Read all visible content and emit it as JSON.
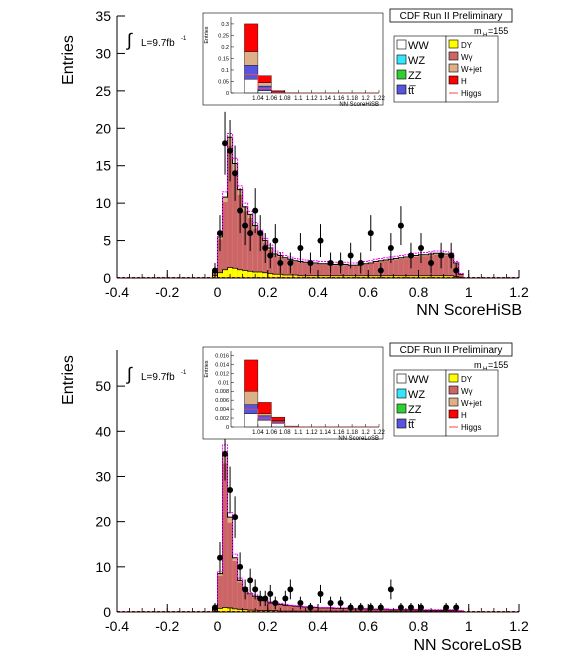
{
  "panels": [
    {
      "run_label": "CDF Run II Preliminary",
      "mass_label": "m",
      "mass_sub": "H",
      "mass_value": "=155",
      "lumi_text": "L=9.7fb",
      "lumi_sup": "-1",
      "legend_left": [
        {
          "label": "WW",
          "color": "#ffffff"
        },
        {
          "label": "WZ",
          "color": "#33e5ff"
        },
        {
          "label": "ZZ",
          "color": "#33cc33"
        },
        {
          "label": "tt̅",
          "color": "#5555dd"
        }
      ],
      "legend_right": [
        {
          "label": "DY",
          "color": "#ffff00"
        },
        {
          "label": "Wγ",
          "color": "#cc6666"
        },
        {
          "label": "W+jet",
          "color": "#dcb088"
        },
        {
          "label": "H",
          "color": "#ff0000"
        },
        {
          "label": "Higgs",
          "color": "#ff4444",
          "line": true
        }
      ]
    },
    {
      "run_label": "CDF Run II Preliminary",
      "mass_label": "m",
      "mass_sub": "H",
      "mass_value": "=155",
      "lumi_text": "L=9.7fb",
      "lumi_sup": "-1",
      "legend_left": [
        {
          "label": "WW",
          "color": "#ffffff"
        },
        {
          "label": "WZ",
          "color": "#33e5ff"
        },
        {
          "label": "ZZ",
          "color": "#33cc33"
        },
        {
          "label": "tt̅",
          "color": "#5555dd"
        }
      ],
      "legend_right": [
        {
          "label": "DY",
          "color": "#ffff00"
        },
        {
          "label": "Wγ",
          "color": "#cc6666"
        },
        {
          "label": "W+jet",
          "color": "#dcb088"
        },
        {
          "label": "H",
          "color": "#ff0000"
        },
        {
          "label": "Higgs",
          "color": "#ff4444",
          "line": true
        }
      ]
    }
  ],
  "chart_data": [
    {
      "type": "bar",
      "xlabel": "NN ScoreHiSB",
      "ylabel": "Entries",
      "xlim": [
        -0.4,
        1.2
      ],
      "ylim": [
        0,
        35
      ],
      "xticks": [
        "-0.4",
        "-0.2",
        "0",
        "0.2",
        "0.4",
        "0.6",
        "0.8",
        "1",
        "1.2"
      ],
      "yticks": [
        "0",
        "5",
        "10",
        "15",
        "20",
        "25",
        "30",
        "35"
      ],
      "bin_edges": [
        -0.02,
        0.0,
        0.02,
        0.04,
        0.06,
        0.08,
        0.1,
        0.12,
        0.14,
        0.16,
        0.18,
        0.2,
        0.22,
        0.24,
        0.26,
        0.28,
        0.3,
        0.32,
        0.34,
        0.36,
        0.38,
        0.4,
        0.42,
        0.44,
        0.46,
        0.48,
        0.5,
        0.52,
        0.54,
        0.56,
        0.58,
        0.6,
        0.62,
        0.64,
        0.66,
        0.68,
        0.7,
        0.72,
        0.74,
        0.76,
        0.78,
        0.8,
        0.82,
        0.84,
        0.86,
        0.88,
        0.9,
        0.92,
        0.94,
        0.96,
        0.98,
        1.0
      ],
      "stack_total": [
        0.8,
        5.5,
        10.8,
        18.8,
        15.3,
        11.8,
        9.5,
        8.5,
        7.0,
        6.0,
        5.0,
        4.0,
        3.2,
        3.0,
        2.7,
        2.5,
        2.3,
        2.2,
        2.1,
        2.0,
        2.0,
        1.9,
        1.9,
        1.8,
        1.8,
        1.8,
        1.8,
        1.7,
        1.7,
        1.8,
        1.9,
        2.0,
        2.2,
        2.3,
        2.4,
        2.5,
        2.6,
        2.7,
        2.8,
        2.9,
        3.0,
        3.1,
        3.1,
        3.2,
        3.3,
        3.3,
        3.2,
        3.0,
        2.0,
        0.5
      ],
      "dy": [
        0.3,
        0.7,
        1.1,
        1.4,
        1.3,
        1.1,
        1.0,
        0.9,
        0.8,
        0.8,
        0.7,
        0.6,
        0.5,
        0.5,
        0.4,
        0.4,
        0.4,
        0.3,
        0.3,
        0.3,
        0.3,
        0.3,
        0.3,
        0.3,
        0.3,
        0.3,
        0.3,
        0.3,
        0.3,
        0.3,
        0.3,
        0.3,
        0.3,
        0.3,
        0.3,
        0.3,
        0.3,
        0.3,
        0.3,
        0.3,
        0.3,
        0.3,
        0.3,
        0.3,
        0.3,
        0.3,
        0.3,
        0.3,
        0.2,
        0.1
      ],
      "higgs": [
        0.8,
        5.8,
        11.5,
        19.3,
        16.0,
        12.3,
        10.0,
        8.9,
        7.4,
        6.4,
        5.3,
        4.4,
        3.6,
        3.4,
        3.0,
        2.8,
        2.6,
        2.5,
        2.4,
        2.3,
        2.3,
        2.2,
        2.2,
        2.1,
        2.1,
        2.1,
        2.1,
        2.0,
        2.0,
        2.1,
        2.2,
        2.3,
        2.5,
        2.6,
        2.7,
        2.8,
        2.9,
        3.0,
        3.1,
        3.2,
        3.3,
        3.4,
        3.4,
        3.5,
        3.6,
        3.6,
        3.5,
        3.3,
        2.2,
        0.6
      ],
      "data_points": [
        {
          "x": -0.01,
          "y": 1.0,
          "err": 1.0
        },
        {
          "x": 0.01,
          "y": 6.0,
          "err": 2.4
        },
        {
          "x": 0.03,
          "y": 18.0,
          "err": 4.2
        },
        {
          "x": 0.05,
          "y": 17.0,
          "err": 4.1
        },
        {
          "x": 0.07,
          "y": 14.0,
          "err": 3.7
        },
        {
          "x": 0.09,
          "y": 9.0,
          "err": 3.0
        },
        {
          "x": 0.11,
          "y": 7.0,
          "err": 2.6
        },
        {
          "x": 0.13,
          "y": 6.0,
          "err": 2.4
        },
        {
          "x": 0.15,
          "y": 9.0,
          "err": 3.0
        },
        {
          "x": 0.17,
          "y": 6.0,
          "err": 2.4
        },
        {
          "x": 0.19,
          "y": 4.0,
          "err": 2.0
        },
        {
          "x": 0.21,
          "y": 3.0,
          "err": 1.7
        },
        {
          "x": 0.23,
          "y": 5.0,
          "err": 2.2
        },
        {
          "x": 0.25,
          "y": 2.0,
          "err": 1.4
        },
        {
          "x": 0.29,
          "y": 2.0,
          "err": 1.4
        },
        {
          "x": 0.33,
          "y": 4.0,
          "err": 2.0
        },
        {
          "x": 0.37,
          "y": 2.0,
          "err": 1.4
        },
        {
          "x": 0.41,
          "y": 5.0,
          "err": 2.2
        },
        {
          "x": 0.45,
          "y": 2.0,
          "err": 1.4
        },
        {
          "x": 0.49,
          "y": 2.0,
          "err": 1.4
        },
        {
          "x": 0.53,
          "y": 3.0,
          "err": 1.7
        },
        {
          "x": 0.57,
          "y": 2.0,
          "err": 1.4
        },
        {
          "x": 0.61,
          "y": 6.0,
          "err": 2.4
        },
        {
          "x": 0.65,
          "y": 1.0,
          "err": 1.0
        },
        {
          "x": 0.69,
          "y": 4.0,
          "err": 2.0
        },
        {
          "x": 0.73,
          "y": 7.0,
          "err": 2.6
        },
        {
          "x": 0.77,
          "y": 3.0,
          "err": 1.7
        },
        {
          "x": 0.81,
          "y": 4.0,
          "err": 2.0
        },
        {
          "x": 0.85,
          "y": 2.0,
          "err": 1.4
        },
        {
          "x": 0.89,
          "y": 3.0,
          "err": 1.7
        },
        {
          "x": 0.93,
          "y": 3.0,
          "err": 1.7
        },
        {
          "x": 0.95,
          "y": 1.0,
          "err": 1.0
        }
      ],
      "inset": {
        "xlabel": "NN ScoreHiSB",
        "ylabel": "Entries",
        "xlim": [
          1.0,
          1.22
        ],
        "ylim": [
          0,
          0.33
        ],
        "yticks": [
          "0",
          "0.05",
          "0.1",
          "0.15",
          "0.2",
          "0.25",
          "0.3"
        ],
        "xticks": [
          "1.04",
          "1.06",
          "1.08",
          "1.1",
          "1.12",
          "1.14",
          "1.16",
          "1.18",
          "1.2",
          "1.22"
        ],
        "bin_edges": [
          1.02,
          1.04,
          1.06,
          1.08,
          1.1,
          1.12,
          1.14,
          1.16,
          1.18,
          1.2,
          1.22
        ],
        "stack": [
          {
            "name": "WW",
            "color": "#ffffff",
            "values": [
              0.06,
              0.01,
              0.0,
              0,
              0,
              0,
              0,
              0,
              0,
              0
            ]
          },
          {
            "name": "tt",
            "color": "#5555dd",
            "values": [
              0.06,
              0.02,
              0.003,
              0,
              0,
              0,
              0,
              0,
              0,
              0
            ]
          },
          {
            "name": "W+jet",
            "color": "#dcb088",
            "values": [
              0.06,
              0.015,
              0.002,
              0,
              0,
              0,
              0,
              0,
              0,
              0
            ]
          },
          {
            "name": "H",
            "color": "#ff0000",
            "values": [
              0.12,
              0.03,
              0.005,
              0.001,
              0,
              0,
              0,
              0,
              0,
              0
            ]
          }
        ],
        "higgs_line": [
          0.08,
          0.02,
          0.003,
          0.0,
          0,
          0,
          0,
          0,
          0,
          0
        ]
      }
    },
    {
      "type": "bar",
      "xlabel": "NN ScoreLoSB",
      "ylabel": "Entries",
      "xlim": [
        -0.4,
        1.2
      ],
      "ylim": [
        0,
        58
      ],
      "xticks": [
        "-0.4",
        "-0.2",
        "0",
        "0.2",
        "0.4",
        "0.6",
        "0.8",
        "1",
        "1.2"
      ],
      "yticks": [
        "0",
        "10",
        "20",
        "30",
        "40",
        "50"
      ],
      "bin_edges": [
        -0.02,
        0.0,
        0.02,
        0.04,
        0.06,
        0.08,
        0.1,
        0.12,
        0.14,
        0.16,
        0.18,
        0.2,
        0.22,
        0.24,
        0.26,
        0.28,
        0.3,
        0.32,
        0.34,
        0.36,
        0.38,
        0.4,
        0.42,
        0.44,
        0.46,
        0.48,
        0.5,
        0.52,
        0.54,
        0.56,
        0.58,
        0.6,
        0.62,
        0.64,
        0.66,
        0.68,
        0.7,
        0.72,
        0.74,
        0.76,
        0.78,
        0.8,
        0.82,
        0.84,
        0.86,
        0.88,
        0.9,
        0.92,
        0.94,
        0.96,
        0.98,
        1.0
      ],
      "stack_total": [
        1.0,
        8.5,
        35.0,
        21.0,
        12.0,
        7.0,
        5.0,
        4.0,
        3.5,
        3.0,
        2.5,
        2.0,
        2.0,
        1.7,
        1.5,
        1.4,
        1.3,
        1.2,
        1.1,
        1.0,
        1.0,
        0.9,
        0.9,
        0.9,
        0.8,
        0.8,
        0.8,
        0.7,
        0.7,
        0.7,
        0.7,
        0.6,
        0.6,
        0.6,
        0.6,
        0.5,
        0.5,
        0.5,
        0.5,
        0.5,
        0.5,
        0.4,
        0.4,
        0.4,
        0.4,
        0.4,
        0.4,
        0.4,
        0.3,
        0.2
      ],
      "dy": [
        0.2,
        0.8,
        1.0,
        0.9,
        0.7,
        0.6,
        0.5,
        0.4,
        0.4,
        0.3,
        0.3,
        0.3,
        0.3,
        0.2,
        0.2,
        0.2,
        0.2,
        0.2,
        0.2,
        0.2,
        0.2,
        0.2,
        0.2,
        0.2,
        0.2,
        0.2,
        0.2,
        0.2,
        0.2,
        0.2,
        0.2,
        0.2,
        0.2,
        0.2,
        0.2,
        0.2,
        0.2,
        0.2,
        0.2,
        0.2,
        0.2,
        0.2,
        0.2,
        0.2,
        0.2,
        0.2,
        0.2,
        0.2,
        0.1,
        0.1
      ],
      "higgs": [
        1.0,
        9.0,
        37.0,
        22.0,
        12.8,
        7.5,
        5.4,
        4.3,
        3.8,
        3.2,
        2.7,
        2.2,
        2.2,
        1.9,
        1.7,
        1.5,
        1.4,
        1.3,
        1.2,
        1.1,
        1.1,
        1.0,
        1.0,
        1.0,
        0.9,
        0.9,
        0.9,
        0.8,
        0.8,
        0.8,
        0.8,
        0.7,
        0.7,
        0.7,
        0.7,
        0.6,
        0.6,
        0.6,
        0.6,
        0.6,
        0.6,
        0.5,
        0.5,
        0.5,
        0.5,
        0.5,
        0.5,
        0.5,
        0.4,
        0.3
      ],
      "data_points": [
        {
          "x": -0.01,
          "y": 1.0,
          "err": 1.0
        },
        {
          "x": 0.01,
          "y": 12.0,
          "err": 3.5
        },
        {
          "x": 0.03,
          "y": 35.0,
          "err": 5.9
        },
        {
          "x": 0.05,
          "y": 27.0,
          "err": 5.2
        },
        {
          "x": 0.07,
          "y": 21.0,
          "err": 4.6
        },
        {
          "x": 0.09,
          "y": 10.0,
          "err": 3.2
        },
        {
          "x": 0.11,
          "y": 5.0,
          "err": 2.2
        },
        {
          "x": 0.13,
          "y": 7.0,
          "err": 2.6
        },
        {
          "x": 0.15,
          "y": 5.0,
          "err": 2.2
        },
        {
          "x": 0.17,
          "y": 3.0,
          "err": 1.7
        },
        {
          "x": 0.19,
          "y": 3.0,
          "err": 1.7
        },
        {
          "x": 0.21,
          "y": 4.0,
          "err": 2.0
        },
        {
          "x": 0.23,
          "y": 2.0,
          "err": 1.4
        },
        {
          "x": 0.27,
          "y": 3.0,
          "err": 1.7
        },
        {
          "x": 0.29,
          "y": 5.0,
          "err": 2.2
        },
        {
          "x": 0.33,
          "y": 2.0,
          "err": 1.4
        },
        {
          "x": 0.37,
          "y": 1.0,
          "err": 1.0
        },
        {
          "x": 0.41,
          "y": 4.0,
          "err": 2.0
        },
        {
          "x": 0.45,
          "y": 2.0,
          "err": 1.4
        },
        {
          "x": 0.49,
          "y": 2.0,
          "err": 1.4
        },
        {
          "x": 0.53,
          "y": 1.0,
          "err": 1.0
        },
        {
          "x": 0.57,
          "y": 1.0,
          "err": 1.0
        },
        {
          "x": 0.61,
          "y": 1.0,
          "err": 1.0
        },
        {
          "x": 0.65,
          "y": 1.0,
          "err": 1.0
        },
        {
          "x": 0.69,
          "y": 5.0,
          "err": 2.2
        },
        {
          "x": 0.73,
          "y": 1.0,
          "err": 1.0
        },
        {
          "x": 0.77,
          "y": 1.0,
          "err": 1.0
        },
        {
          "x": 0.81,
          "y": 1.0,
          "err": 1.0
        },
        {
          "x": 0.91,
          "y": 1.0,
          "err": 1.0
        },
        {
          "x": 0.95,
          "y": 1.0,
          "err": 1.0
        }
      ],
      "inset": {
        "xlabel": "NN ScoreLoSB",
        "ylabel": "Entries",
        "xlim": [
          1.0,
          1.22
        ],
        "ylim": [
          0,
          0.017
        ],
        "yticks": [
          "0",
          "0.002",
          "0.004",
          "0.006",
          "0.008",
          "0.01",
          "0.012",
          "0.014",
          "0.016"
        ],
        "xticks": [
          "1.04",
          "1.06",
          "1.08",
          "1.1",
          "1.12",
          "1.14",
          "1.16",
          "1.18",
          "1.2",
          "1.22"
        ],
        "bin_edges": [
          1.02,
          1.04,
          1.06,
          1.08,
          1.1,
          1.12,
          1.14,
          1.16,
          1.18,
          1.2,
          1.22
        ],
        "stack": [
          {
            "name": "WW",
            "color": "#ffffff",
            "values": [
              0.003,
              0.0015,
              0.0008,
              0.0002,
              0,
              0,
              0,
              0,
              0,
              0
            ]
          },
          {
            "name": "tt",
            "color": "#5555dd",
            "values": [
              0.002,
              0.001,
              0.0004,
              0,
              0,
              0,
              0,
              0,
              0,
              0
            ]
          },
          {
            "name": "W+jet",
            "color": "#dcb088",
            "values": [
              0.003,
              0.0005,
              0.0002,
              0,
              0,
              0,
              0,
              0,
              0,
              0
            ]
          },
          {
            "name": "H",
            "color": "#ff0000",
            "values": [
              0.007,
              0.0025,
              0.0008,
              0,
              0,
              0,
              0,
              0,
              0,
              0
            ]
          }
        ],
        "higgs_line": [
          0.004,
          0.002,
          0.0008,
          0.0001,
          0,
          0,
          0,
          0,
          0,
          0
        ]
      }
    }
  ]
}
